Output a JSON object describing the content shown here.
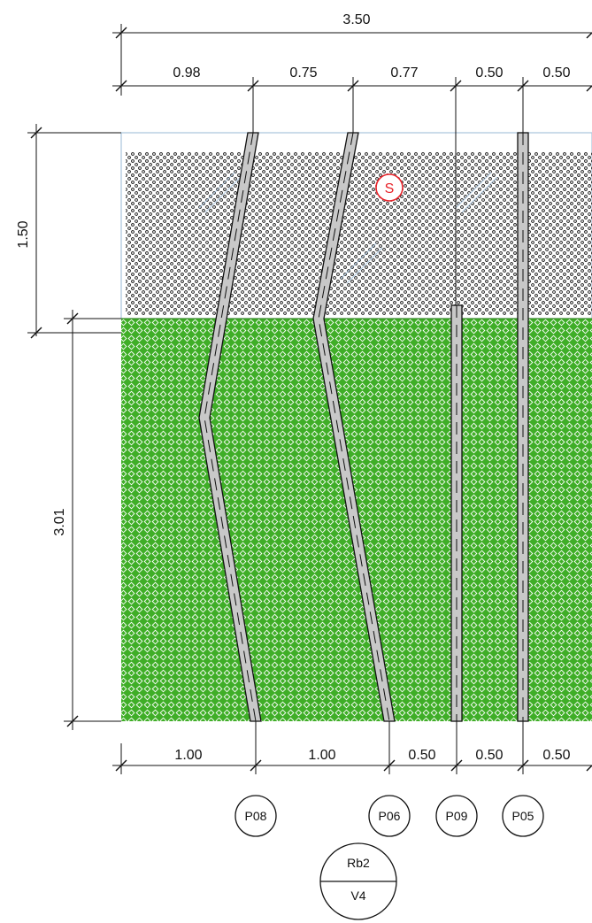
{
  "top_dimensions": {
    "overall": "3.50",
    "segments": [
      "0.98",
      "0.75",
      "0.77",
      "0.50",
      "0.50"
    ]
  },
  "bottom_dimensions": {
    "segments": [
      "1.00",
      "1.00",
      "0.50",
      "0.50",
      "0.50"
    ]
  },
  "left_dimensions": {
    "upper": "1.50",
    "lower": "3.01"
  },
  "layers": {
    "upper": {
      "marker": "S",
      "marker_color": "#e8232a",
      "pattern": "dotted"
    },
    "lower": {
      "color": "#3fae27",
      "pattern": "cross-hatch"
    }
  },
  "piles": [
    "P08",
    "P06",
    "P09",
    "P05"
  ],
  "section_tag": {
    "top": "Rb2",
    "bottom": "V4"
  },
  "colors": {
    "line": "#111111",
    "pile_fill": "#c8c8c8",
    "sky_border": "#a9c4dc",
    "green": "#3fae27",
    "marker_red": "#e8232a"
  }
}
